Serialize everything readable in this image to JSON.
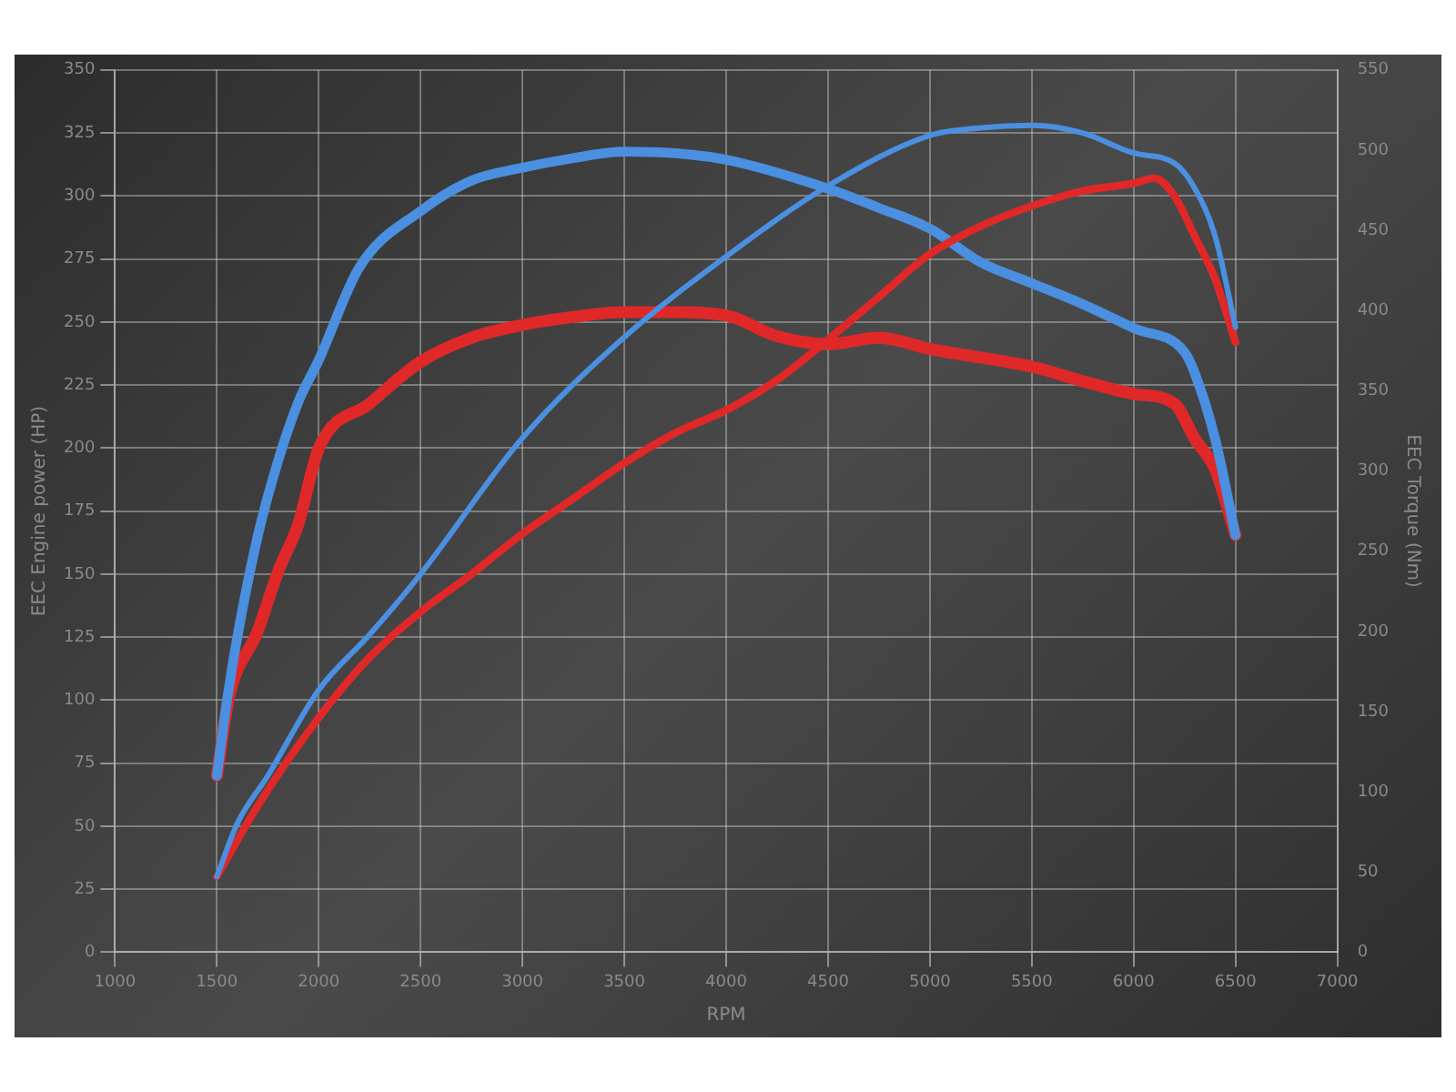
{
  "chart_data": {
    "type": "line",
    "xlabel": "RPM",
    "ylabel": "EEC Engine power (HP)",
    "y2label": "EEC Torque (Nm)",
    "xlim": [
      1000,
      7000
    ],
    "xticks": [
      1000,
      1500,
      2000,
      2500,
      3000,
      3500,
      4000,
      4500,
      5000,
      5500,
      6000,
      6500,
      7000
    ],
    "ylim": [
      0,
      350
    ],
    "yticks": [
      0,
      25,
      50,
      75,
      100,
      125,
      150,
      175,
      200,
      225,
      250,
      275,
      300,
      325,
      350
    ],
    "y2lim": [
      0,
      550
    ],
    "y2ticks": [
      0,
      50,
      100,
      150,
      200,
      250,
      300,
      350,
      400,
      450,
      500,
      550
    ],
    "grid": true,
    "legend": false,
    "marker": "none",
    "line_style": "solid",
    "series": [
      {
        "color": "#4a8fe0",
        "x": [
          1500,
          1600,
          1750,
          2000,
          2250,
          2500,
          3000,
          3500,
          4000,
          4500,
          5000,
          5250,
          5500,
          5750,
          6000,
          6200,
          6300,
          6400,
          6500
        ],
        "values": [
          30,
          51,
          70,
          104,
          126,
          150,
          204,
          244,
          276,
          304,
          324,
          327,
          328,
          325,
          317,
          313,
          303,
          284,
          248
        ]
      },
      {
        "color": "#e02828",
        "x": [
          1500,
          1700,
          2000,
          2250,
          2500,
          2750,
          3000,
          3250,
          3500,
          3750,
          4000,
          4250,
          4500,
          4750,
          5000,
          5250,
          5500,
          5750,
          6000,
          6100,
          6200,
          6300,
          6400,
          6500
        ],
        "values": [
          30,
          58,
          93,
          117,
          135,
          150,
          166,
          180,
          194,
          206,
          215,
          227,
          243,
          260,
          277,
          288,
          296,
          302,
          305,
          307,
          300,
          284,
          267,
          242
        ]
      },
      {
        "color": "#4a8fe0",
        "axis": "y2",
        "x": [
          1500,
          1550,
          1600,
          1700,
          1800,
          1900,
          2000,
          2200,
          2500,
          2750,
          3000,
          3250,
          3500,
          3750,
          4000,
          4500,
          4750,
          5000,
          5250,
          5500,
          5750,
          6000,
          6250,
          6300,
          6400,
          6500
        ],
        "values": [
          110,
          157,
          196,
          259,
          306,
          343,
          369,
          427,
          462,
          481,
          489,
          495,
          499,
          498,
          494,
          476,
          464,
          451,
          430,
          417,
          404,
          389,
          374,
          361,
          320,
          260
        ]
      },
      {
        "color": "#e02828",
        "axis": "y2",
        "x": [
          1500,
          1560,
          1700,
          1800,
          1900,
          2000,
          2250,
          2500,
          2750,
          3000,
          3250,
          3500,
          3750,
          4000,
          4250,
          4500,
          4750,
          5000,
          5500,
          5750,
          6000,
          6200,
          6300,
          6400,
          6500
        ],
        "values": [
          110,
          159,
          200,
          237,
          267,
          314,
          342,
          368,
          383,
          391,
          396,
          399,
          399,
          397,
          384,
          379,
          383,
          376,
          365,
          356,
          348,
          342,
          320,
          301,
          260
        ]
      }
    ]
  }
}
